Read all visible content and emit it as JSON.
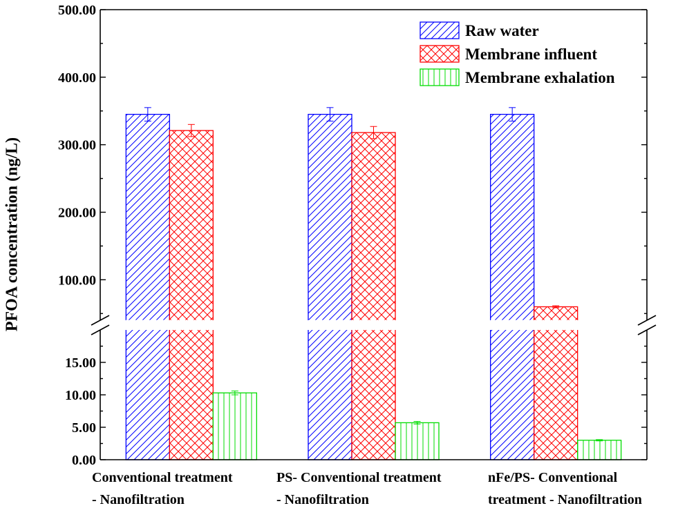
{
  "chart_data": {
    "type": "bar",
    "ylabel": "PFOA concentration (ng/L)",
    "y_axis_break": {
      "lower_range": [
        0,
        20
      ],
      "upper_range": [
        40,
        500
      ]
    },
    "lower_ticks": [
      "0.00",
      "5.00",
      "10.00",
      "15.00"
    ],
    "upper_ticks": [
      "100.00",
      "200.00",
      "300.00",
      "400.00",
      "500.00"
    ],
    "categories": [
      "Conventional treatment\n- Nanofiltration",
      "PS- Conventional treatment\n- Nanofiltration",
      "nFe/PS- Conventional\ntreatment - Nanofiltration"
    ],
    "series": [
      {
        "name": "Raw water",
        "values": [
          345,
          345,
          345
        ],
        "errors": [
          10,
          10,
          10
        ],
        "color": "#0000ff",
        "pattern": "diagonal"
      },
      {
        "name": "Membrane influent",
        "values": [
          321,
          318,
          60
        ],
        "errors": [
          9,
          9,
          1.5
        ],
        "color": "#ff0000",
        "pattern": "crosshatch"
      },
      {
        "name": "Membrane exhalation",
        "values": [
          10.3,
          5.7,
          3.0
        ],
        "errors": [
          0.3,
          0.2,
          0.1
        ],
        "color": "#00dd00",
        "pattern": "vertical"
      }
    ],
    "legend_position": "top-right"
  }
}
